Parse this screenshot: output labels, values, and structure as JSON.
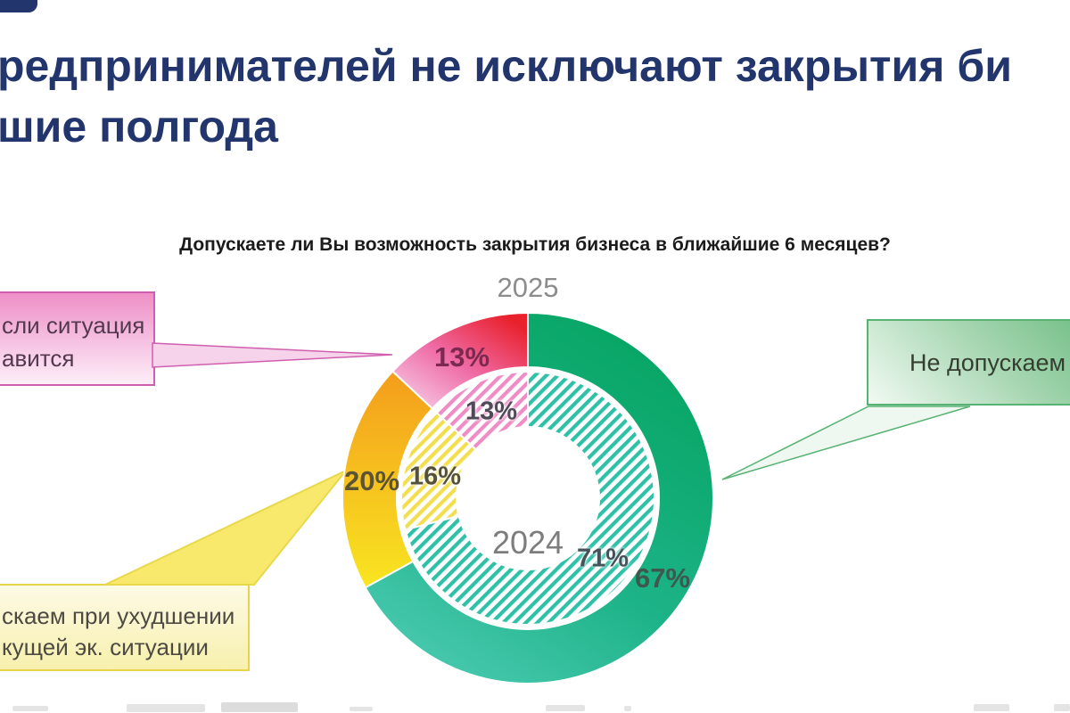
{
  "slide": {
    "title_line1": "редпринимателей не исключают закрытия би",
    "title_line2": "шие полгода",
    "title_color": "#22356d"
  },
  "chart_data": {
    "type": "donut",
    "title": "Допускаете ли Вы возможность закрытия бизнеса в ближайшие 6 месяцев?",
    "legend_position": "callout-bubbles",
    "rings": [
      {
        "year": "2025",
        "position": "outer",
        "segments": [
          {
            "id": "green",
            "value": 67,
            "pct_label": "67%"
          },
          {
            "id": "yellow",
            "value": 20,
            "pct_label": "20%"
          },
          {
            "id": "pink",
            "value": 13,
            "pct_label": "13%"
          }
        ]
      },
      {
        "year": "2024",
        "position": "inner",
        "style": "hatched",
        "segments": [
          {
            "id": "teal",
            "value": 71,
            "pct_label": "71%"
          },
          {
            "id": "yellow",
            "value": 16,
            "pct_label": "16%"
          },
          {
            "id": "pink",
            "value": 13,
            "pct_label": "13%"
          }
        ]
      }
    ],
    "colors": {
      "green_gradient": [
        "#06a563",
        "#1db388",
        "#4ecbb4"
      ],
      "yellow_gradient": [
        "#f49d1c",
        "#f8e521"
      ],
      "pinkred_gradient": [
        "#f7cde7",
        "#ef6ba6",
        "#e9212d"
      ],
      "hatch_teal": "#2fc1a7",
      "hatch_yellow": "#f3de4d",
      "hatch_pink": "#ef8cc6"
    }
  },
  "callouts": {
    "pink": {
      "line1": "сли ситуация",
      "line2": "авится",
      "border": "#cf5fae"
    },
    "green": {
      "label": "Не допускаем",
      "border": "#57b273"
    },
    "yellow": {
      "line1": "скаем при ухудшении",
      "line2": "кущей эк. ситуации",
      "border": "#e6d44b"
    }
  }
}
